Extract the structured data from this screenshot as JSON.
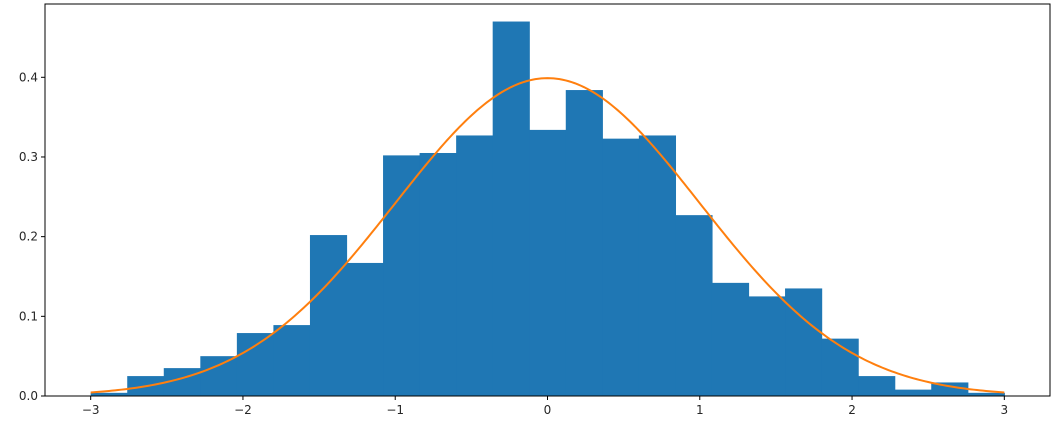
{
  "chart_data": {
    "type": "bar",
    "subtype": "histogram-with-density-curve",
    "title": "",
    "xlabel": "",
    "ylabel": "",
    "xlim": [
      -3.3,
      3.3
    ],
    "ylim": [
      0,
      0.492
    ],
    "grid": false,
    "legend": "none",
    "bins": {
      "edges": [
        -3.0,
        -2.76,
        -2.52,
        -2.28,
        -2.04,
        -1.8,
        -1.56,
        -1.32,
        -1.08,
        -0.84,
        -0.6,
        -0.36,
        -0.12,
        0.12,
        0.36,
        0.6,
        0.84,
        1.08,
        1.32,
        1.56,
        1.8,
        2.04,
        2.28,
        2.52,
        2.76,
        3.0
      ],
      "values": [
        0.004,
        0.025,
        0.035,
        0.05,
        0.079,
        0.089,
        0.202,
        0.167,
        0.302,
        0.305,
        0.327,
        0.47,
        0.334,
        0.384,
        0.323,
        0.327,
        0.227,
        0.142,
        0.125,
        0.135,
        0.072,
        0.025,
        0.008,
        0.017,
        0.004
      ],
      "color": "#1f77b4"
    },
    "curve": {
      "kind": "standard normal pdf",
      "x_range": [
        -3,
        3
      ],
      "color": "#ff7f0e"
    },
    "x_ticks": [
      {
        "value": -3,
        "label": "−3"
      },
      {
        "value": -2,
        "label": "−2"
      },
      {
        "value": -1,
        "label": "−1"
      },
      {
        "value": 0,
        "label": "0"
      },
      {
        "value": 1,
        "label": "1"
      },
      {
        "value": 2,
        "label": "2"
      },
      {
        "value": 3,
        "label": "3"
      }
    ],
    "y_ticks": [
      {
        "value": 0.0,
        "label": "0.0"
      },
      {
        "value": 0.1,
        "label": "0.1"
      },
      {
        "value": 0.2,
        "label": "0.2"
      },
      {
        "value": 0.3,
        "label": "0.3"
      },
      {
        "value": 0.4,
        "label": "0.4"
      }
    ]
  }
}
